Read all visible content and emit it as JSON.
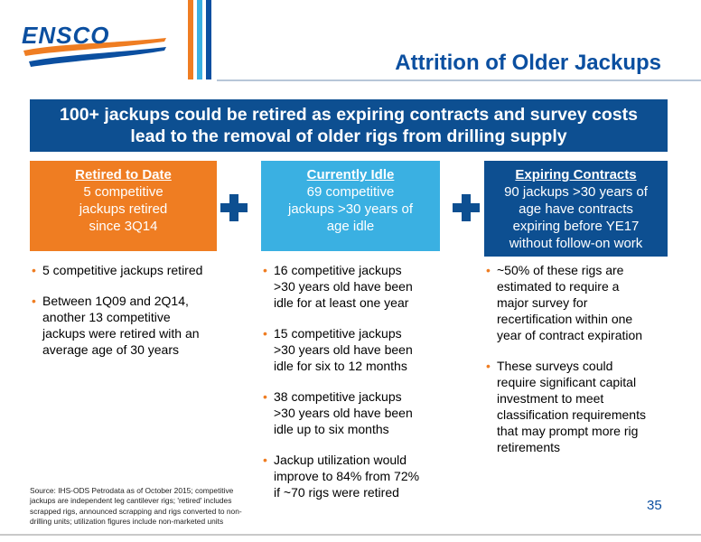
{
  "header": {
    "logo_text": "ENSCO",
    "title": "Attrition of Older Jackups",
    "colors": {
      "brand_blue": "#0b4fa0",
      "orange": "#ef7d22",
      "light_blue": "#3ab0e2"
    }
  },
  "banner": {
    "line1": "100+ jackups could be retired as expiring contracts and survey costs",
    "line2": "lead to the removal of older rigs from drilling supply"
  },
  "boxes": [
    {
      "heading": "Retired to Date",
      "lines": [
        "5 competitive",
        "jackups retired",
        "since 3Q14"
      ]
    },
    {
      "heading": "Currently Idle",
      "lines": [
        "69 competitive",
        "jackups >30 years of",
        "age idle"
      ]
    },
    {
      "heading": "Expiring Contracts",
      "lines": [
        "90 jackups >30 years of",
        "age have contracts",
        "expiring before YE17",
        "without follow-on work"
      ]
    }
  ],
  "columns": [
    {
      "bullets": [
        [
          "5 competitive jackups retired"
        ],
        [
          "Between 1Q09 and 2Q14,",
          "another 13 competitive",
          "jackups were retired with an",
          "average age of 30 years"
        ]
      ]
    },
    {
      "bullets": [
        [
          "16 competitive jackups",
          ">30 years old have been",
          "idle for at least one year"
        ],
        [
          "15 competitive jackups",
          ">30 years old have been",
          "idle for six to 12 months"
        ],
        [
          "38 competitive jackups",
          ">30 years old have been",
          "idle up to six months"
        ],
        [
          "Jackup utilization would",
          "improve to 84% from 72%",
          "if ~70 rigs were retired"
        ]
      ]
    },
    {
      "bullets": [
        [
          "~50% of these rigs are",
          "estimated to require a",
          "major survey for",
          "recertification within one",
          "year of contract expiration"
        ],
        [
          "These surveys could",
          "require significant capital",
          "investment to meet",
          "classification requirements",
          "that may prompt more rig",
          "retirements"
        ]
      ]
    }
  ],
  "footer": {
    "source_lines": [
      "Source: IHS-ODS Petrodata as of October 2015; competitive",
      "jackups are independent leg cantilever rigs; 'retired' includes",
      "scrapped rigs, announced scrapping and rigs converted to non-",
      "drilling units; utilization figures include non-marketed units"
    ],
    "page_number": "35"
  }
}
